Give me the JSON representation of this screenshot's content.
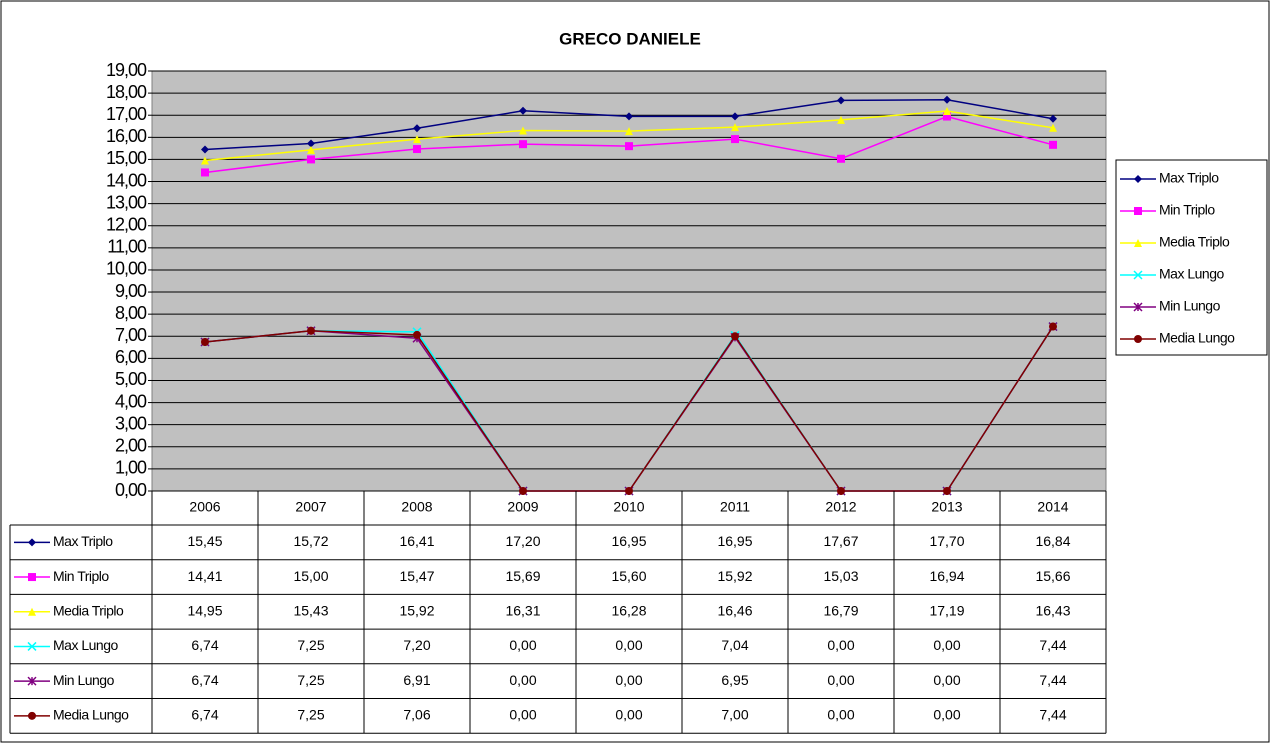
{
  "chart_data": {
    "type": "line",
    "title": "GRECO DANIELE",
    "categories": [
      "2006",
      "2007",
      "2008",
      "2009",
      "2010",
      "2011",
      "2012",
      "2013",
      "2014"
    ],
    "series": [
      {
        "name": "Max Triplo",
        "color": "#000080",
        "marker": "diamond",
        "values": [
          15.45,
          15.72,
          16.41,
          17.2,
          16.95,
          16.95,
          17.67,
          17.7,
          16.84
        ],
        "value_labels": [
          "15,45",
          "15,72",
          "16,41",
          "17,20",
          "16,95",
          "16,95",
          "17,67",
          "17,70",
          "16,84"
        ]
      },
      {
        "name": "Min Triplo",
        "color": "#ff00ff",
        "marker": "square",
        "values": [
          14.41,
          15.0,
          15.47,
          15.69,
          15.6,
          15.92,
          15.03,
          16.94,
          15.66
        ],
        "value_labels": [
          "14,41",
          "15,00",
          "15,47",
          "15,69",
          "15,60",
          "15,92",
          "15,03",
          "16,94",
          "15,66"
        ]
      },
      {
        "name": "Media Triplo",
        "color": "#ffff00",
        "marker": "triangle",
        "values": [
          14.95,
          15.43,
          15.92,
          16.31,
          16.28,
          16.46,
          16.79,
          17.19,
          16.43
        ],
        "value_labels": [
          "14,95",
          "15,43",
          "15,92",
          "16,31",
          "16,28",
          "16,46",
          "16,79",
          "17,19",
          "16,43"
        ]
      },
      {
        "name": "Max Lungo",
        "color": "#00ffff",
        "marker": "x",
        "values": [
          6.74,
          7.25,
          7.2,
          0,
          0,
          7.04,
          0,
          0,
          7.44
        ],
        "value_labels": [
          "6,74",
          "7,25",
          "7,20",
          "0,00",
          "0,00",
          "7,04",
          "0,00",
          "0,00",
          "7,44"
        ]
      },
      {
        "name": "Min Lungo",
        "color": "#800080",
        "marker": "star",
        "values": [
          6.74,
          7.25,
          6.91,
          0,
          0,
          6.95,
          0,
          0,
          7.44
        ],
        "value_labels": [
          "6,74",
          "7,25",
          "6,91",
          "0,00",
          "0,00",
          "6,95",
          "0,00",
          "0,00",
          "7,44"
        ]
      },
      {
        "name": "Media Lungo",
        "color": "#800000",
        "marker": "circle",
        "values": [
          6.74,
          7.25,
          7.06,
          0,
          0,
          7.0,
          0,
          0,
          7.44
        ],
        "value_labels": [
          "6,74",
          "7,25",
          "7,06",
          "0,00",
          "0,00",
          "7,00",
          "0,00",
          "0,00",
          "7,44"
        ]
      }
    ],
    "ylim": [
      0,
      19
    ],
    "yticks": [
      {
        "value": 0,
        "label": "0,00"
      },
      {
        "value": 1,
        "label": "1,00"
      },
      {
        "value": 2,
        "label": "2,00"
      },
      {
        "value": 3,
        "label": "3,00"
      },
      {
        "value": 4,
        "label": "4,00"
      },
      {
        "value": 5,
        "label": "5,00"
      },
      {
        "value": 6,
        "label": "6,00"
      },
      {
        "value": 7,
        "label": "7,00"
      },
      {
        "value": 8,
        "label": "8,00"
      },
      {
        "value": 9,
        "label": "9,00"
      },
      {
        "value": 10,
        "label": "10,00"
      },
      {
        "value": 11,
        "label": "11,00"
      },
      {
        "value": 12,
        "label": "12,00"
      },
      {
        "value": 13,
        "label": "13,00"
      },
      {
        "value": 14,
        "label": "14,00"
      },
      {
        "value": 15,
        "label": "15,00"
      },
      {
        "value": 16,
        "label": "16,00"
      },
      {
        "value": 17,
        "label": "17,00"
      },
      {
        "value": 18,
        "label": "18,00"
      },
      {
        "value": 19,
        "label": "19,00"
      }
    ],
    "grid": true,
    "legend": "right",
    "data_table": true
  }
}
